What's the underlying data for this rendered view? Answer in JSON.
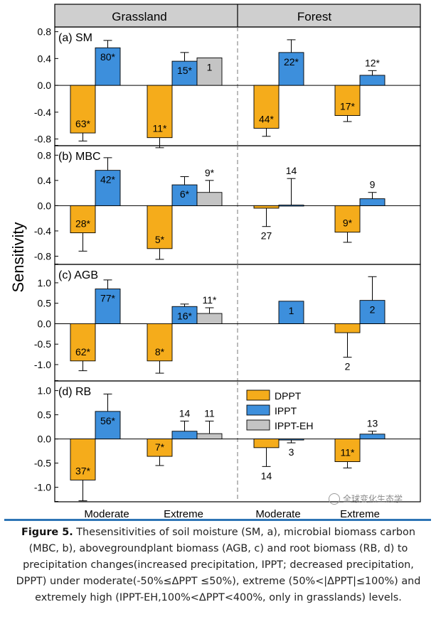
{
  "figure": {
    "columns": [
      "Grassland",
      "Forest"
    ],
    "group_labels": [
      "Moderate",
      "Extreme",
      "Moderate",
      "Extreme"
    ],
    "y_axis_label": "Sensitivity",
    "legend": [
      {
        "name": "DPPT",
        "color": "#f5ac1b"
      },
      {
        "name": "IPPT",
        "color": "#3d8fdc"
      },
      {
        "name": "IPPT-EH",
        "color": "#c4c4c4"
      }
    ],
    "watermark": "全球变化生态学",
    "caption": {
      "label": "Figure 5.",
      "text": " Thesensitivities of soil moisture (SM, a), microbial biomass carbon (MBC, b), abovegroundplant biomass (AGB, c) and root biomass (RB, d) to precipitation changes(increased precipitation, IPPT; decreased precipitation, DPPT) under moderate(-50%≤ΔPPT ≤50%), extreme (50%<|ΔPPT|≤100%) and extremely high (IPPT-EH,100%<ΔPPT<400%, only in grasslands) levels."
    }
  },
  "chart_data": [
    {
      "type": "bar",
      "title": "(a) SM",
      "categories": [
        "Grassland Moderate",
        "Grassland Extreme",
        "Forest Moderate",
        "Forest Extreme"
      ],
      "ylim": [
        -0.9,
        0.87
      ],
      "yticks": [
        -0.8,
        -0.4,
        0.0,
        0.4,
        0.8
      ],
      "yticklabels": [
        "-0.8",
        "-0.4",
        "0.0",
        "0.4",
        "0.8"
      ],
      "series": [
        {
          "name": "DPPT",
          "values": [
            -0.71,
            -0.78,
            -0.64,
            -0.45
          ],
          "errors": [
            0.12,
            0.15,
            0.12,
            0.09
          ],
          "labels": [
            "63*",
            "11*",
            "44*",
            "17*"
          ]
        },
        {
          "name": "IPPT",
          "values": [
            0.56,
            0.36,
            0.49,
            0.15
          ],
          "errors": [
            0.11,
            0.13,
            0.19,
            0.07
          ],
          "labels": [
            "80*",
            "15*",
            "22*",
            "12*"
          ]
        },
        {
          "name": "IPPT-EH",
          "values": [
            null,
            0.41,
            null,
            null
          ],
          "errors": [
            null,
            0.0,
            null,
            null
          ],
          "labels": [
            null,
            "1",
            null,
            null
          ]
        }
      ]
    },
    {
      "type": "bar",
      "title": "(b) MBC",
      "categories": [
        "Grassland Moderate",
        "Grassland Extreme",
        "Forest Moderate",
        "Forest Extreme"
      ],
      "ylim": [
        -0.93,
        0.95
      ],
      "yticks": [
        -0.8,
        -0.4,
        0.0,
        0.4,
        0.8
      ],
      "yticklabels": [
        "-0.8",
        "-0.4",
        "0.0",
        "0.4",
        "0.8"
      ],
      "series": [
        {
          "name": "DPPT",
          "values": [
            -0.43,
            -0.68,
            -0.04,
            -0.42
          ],
          "errors": [
            0.29,
            0.17,
            0.29,
            0.16
          ],
          "labels": [
            "28*",
            "5*",
            "27",
            "9*"
          ]
        },
        {
          "name": "IPPT",
          "values": [
            0.56,
            0.33,
            0.01,
            0.11
          ],
          "errors": [
            0.2,
            0.13,
            0.42,
            0.1
          ],
          "labels": [
            "42*",
            "6*",
            "14",
            "9"
          ]
        },
        {
          "name": "IPPT-EH",
          "values": [
            null,
            0.21,
            null,
            null
          ],
          "errors": [
            null,
            0.19,
            null,
            null
          ],
          "labels": [
            null,
            "9*",
            null,
            null
          ]
        }
      ]
    },
    {
      "type": "bar",
      "title": "(c) AGB",
      "categories": [
        "Grassland Moderate",
        "Grassland Extreme",
        "Forest Moderate",
        "Forest Extreme"
      ],
      "ylim": [
        -1.4,
        1.45
      ],
      "yticks": [
        -1.0,
        -0.5,
        0.0,
        0.5,
        1.0
      ],
      "yticklabels": [
        "-1.0",
        "-0.5",
        "0.0",
        "0.5",
        "1.0"
      ],
      "series": [
        {
          "name": "DPPT",
          "values": [
            -0.91,
            -0.91,
            null,
            -0.22
          ],
          "errors": [
            0.24,
            0.3,
            null,
            0.6
          ],
          "labels": [
            "62*",
            "8*",
            null,
            "2"
          ]
        },
        {
          "name": "IPPT",
          "values": [
            0.85,
            0.42,
            0.55,
            0.57
          ],
          "errors": [
            0.22,
            0.06,
            0.0,
            0.58
          ],
          "labels": [
            "77*",
            "16*",
            "1",
            "2"
          ]
        },
        {
          "name": "IPPT-EH",
          "values": [
            null,
            0.25,
            null,
            null
          ],
          "errors": [
            null,
            0.14,
            null,
            null
          ],
          "labels": [
            null,
            "11*",
            null,
            null
          ]
        }
      ]
    },
    {
      "type": "bar",
      "title": "(d) RB",
      "categories": [
        "Grassland Moderate",
        "Grassland Extreme",
        "Forest Moderate",
        "Forest Extreme"
      ],
      "ylim": [
        -1.3,
        1.2
      ],
      "yticks": [
        -1.0,
        -0.5,
        0.0,
        0.5,
        1.0
      ],
      "yticklabels": [
        "-1.0",
        "-0.5",
        "0.0",
        "0.5",
        "1.0"
      ],
      "series": [
        {
          "name": "DPPT",
          "values": [
            -0.85,
            -0.36,
            -0.18,
            -0.47
          ],
          "errors": [
            0.43,
            0.19,
            0.39,
            0.13
          ],
          "labels": [
            "37*",
            "7*",
            "14",
            "11*"
          ]
        },
        {
          "name": "IPPT",
          "values": [
            0.57,
            0.16,
            -0.02,
            0.1
          ],
          "errors": [
            0.36,
            0.21,
            0.06,
            0.06
          ],
          "labels": [
            "56*",
            "14",
            "3",
            "13"
          ]
        },
        {
          "name": "IPPT-EH",
          "values": [
            null,
            0.11,
            null,
            null
          ],
          "errors": [
            null,
            0.26,
            null,
            null
          ],
          "labels": [
            null,
            "11",
            null,
            null
          ]
        }
      ]
    }
  ]
}
